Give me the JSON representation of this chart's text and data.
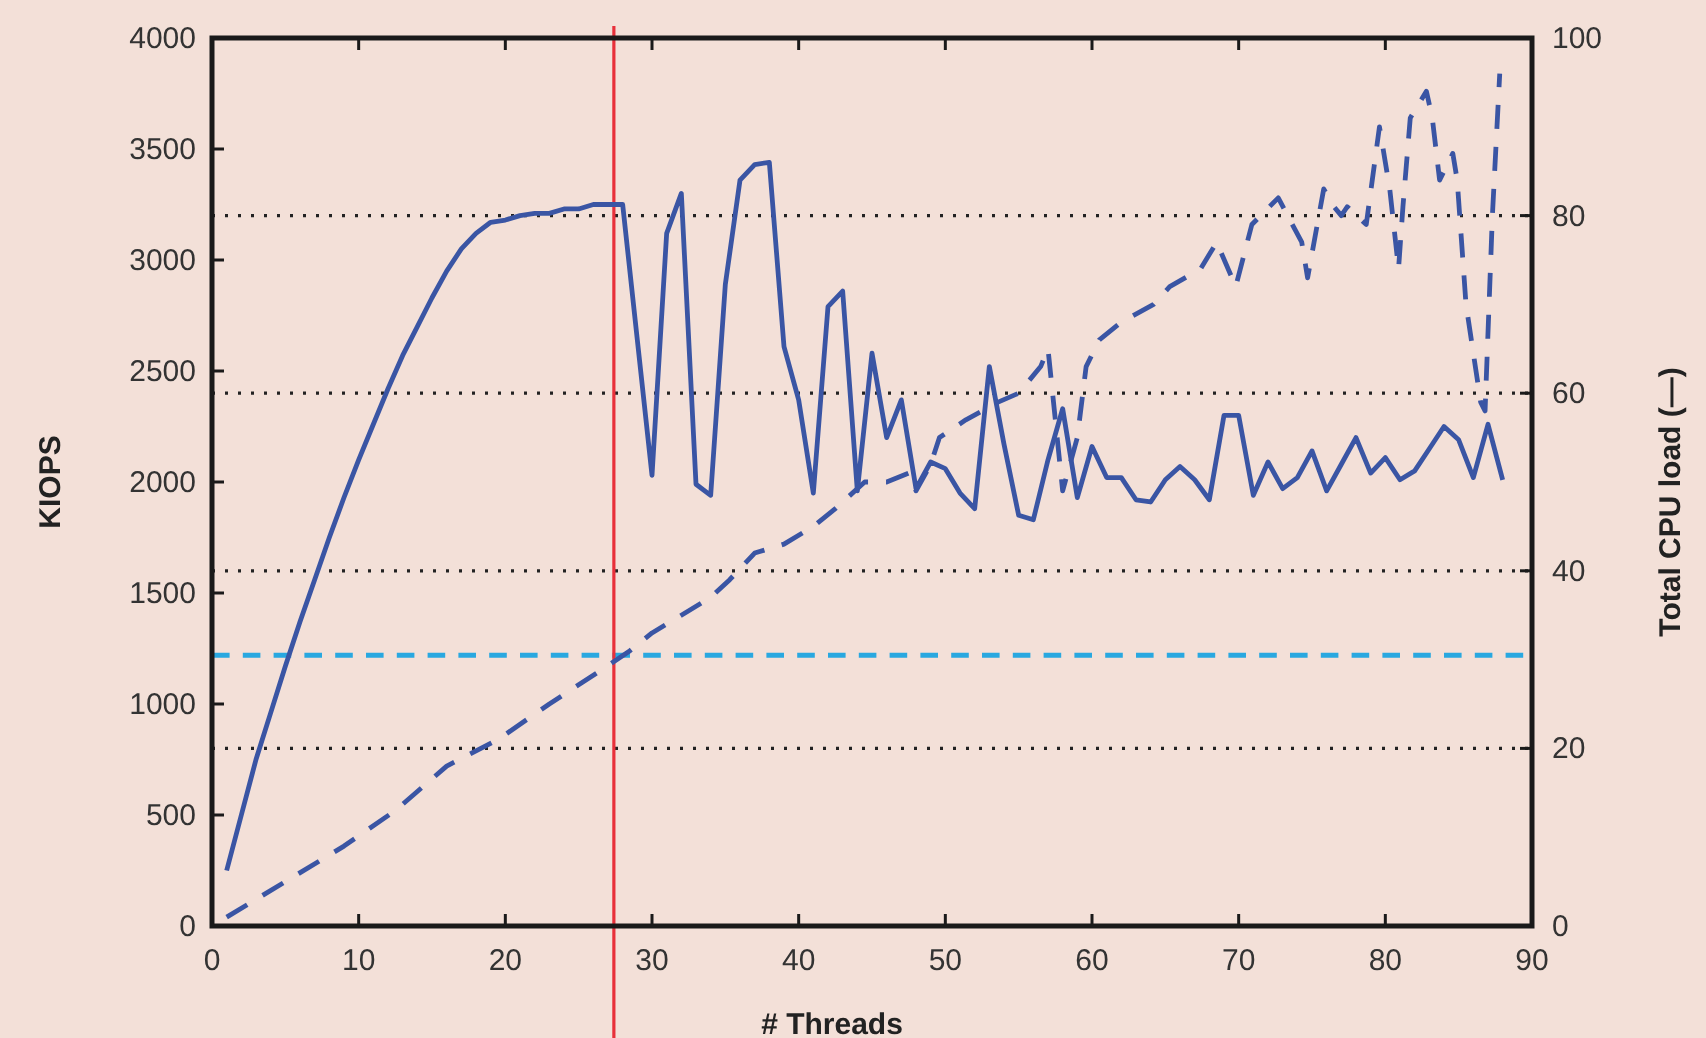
{
  "chart_data": {
    "type": "line",
    "xlabel": "# Threads",
    "ylabel": "KIOPS",
    "y2label": "Total CPU load (—)",
    "x": [
      1,
      2,
      3,
      4,
      5,
      6,
      7,
      8,
      9,
      10,
      11,
      12,
      13,
      14,
      15,
      16,
      17,
      18,
      19,
      20,
      21,
      22,
      23,
      24,
      25,
      26,
      27,
      28,
      29,
      30,
      31,
      32,
      33,
      34,
      35,
      36,
      37,
      38,
      39,
      40,
      41,
      42,
      43,
      44,
      45,
      46,
      47,
      48,
      49,
      50,
      51,
      52,
      53,
      54,
      55,
      56,
      57,
      58,
      59,
      60,
      61,
      62,
      63,
      64,
      65,
      66,
      67,
      68,
      69,
      70,
      71,
      72,
      73,
      74,
      75,
      76,
      77,
      78,
      79,
      80,
      81,
      82,
      83,
      84,
      85,
      86,
      87,
      88
    ],
    "series": [
      {
        "color": "#3a55a4",
        "line_style": "solid",
        "values": [
          250,
          500,
          750,
          960,
          1170,
          1370,
          1560,
          1750,
          1930,
          2100,
          2260,
          2420,
          2570,
          2700,
          2830,
          2950,
          3050,
          3120,
          3170,
          3180,
          3200,
          3210,
          3210,
          3230,
          3230,
          3250,
          3250,
          3250,
          2640,
          2030,
          3120,
          3300,
          1990,
          1940,
          2890,
          3360,
          3430,
          3440,
          2610,
          2370,
          1950,
          2790,
          2860,
          1960,
          2580,
          2200,
          2370,
          1970,
          2090,
          2060,
          1950,
          1880,
          2520,
          2170,
          1850,
          1830,
          2100,
          2330,
          1930,
          2160,
          2020,
          2020,
          1920,
          1910,
          2010,
          2070,
          2010,
          1920,
          2300,
          2300,
          1940,
          2090,
          1970,
          2020,
          2140,
          1960,
          2080,
          2200,
          2040,
          2110,
          2010,
          2050,
          2150,
          2250,
          2190,
          2020,
          2260,
          2010
        ]
      },
      {
        "axis": "y2",
        "color": "#3a55a4",
        "line_style": "dashed",
        "x": [
          1,
          5,
          9,
          12.5,
          16,
          19.5,
          23,
          26.7,
          28.5,
          30,
          32,
          34,
          35.3,
          37,
          39,
          41,
          42.5,
          44.5,
          46,
          47.5,
          48,
          49,
          49.6,
          51.4,
          53.6,
          55,
          56.5,
          57,
          57.5,
          58,
          59,
          59.6,
          60.5,
          62,
          64.2,
          65.3,
          67.4,
          68.5,
          69.8,
          70.9,
          72.7,
          74.3,
          74.7,
          75.8,
          76.5,
          77,
          77.4,
          78.7,
          79.6,
          80,
          80.3,
          80.9,
          81.2,
          81.7,
          82.8,
          83.2,
          83.7,
          84.6,
          84.9,
          85.5,
          86.5,
          86.8,
          87.3,
          87.8
        ],
        "values": [
          1,
          5,
          9,
          13,
          18,
          21,
          25,
          29,
          31,
          33,
          35,
          37,
          39,
          42,
          43,
          45,
          47,
          50,
          50,
          51,
          49,
          52,
          55,
          57,
          59,
          60,
          63,
          65,
          57,
          49,
          55,
          63,
          66,
          68,
          70,
          72,
          74,
          77,
          72,
          79,
          82,
          77,
          73,
          83,
          81,
          80,
          81,
          79,
          90,
          86,
          83,
          74,
          81,
          91,
          94,
          91,
          84,
          87,
          84,
          70,
          59,
          58,
          80,
          96
        ]
      }
    ],
    "xlim": [
      0,
      90
    ],
    "xticks": [
      0,
      10,
      20,
      30,
      40,
      50,
      60,
      70,
      80,
      90
    ],
    "ylim": [
      0,
      4000
    ],
    "yticks": [
      0,
      500,
      1000,
      1500,
      2000,
      2500,
      3000,
      3500,
      4000
    ],
    "y2lim": [
      0,
      100
    ],
    "y2ticks": [
      0,
      20,
      40,
      60,
      80,
      100
    ],
    "ref_lines": [
      {
        "axis": "y2",
        "value": 20,
        "color": "#222222",
        "line_style": "dotted"
      },
      {
        "axis": "y2",
        "value": 40,
        "color": "#222222",
        "line_style": "dotted"
      },
      {
        "axis": "y2",
        "value": 60,
        "color": "#222222",
        "line_style": "dotted"
      },
      {
        "axis": "y2",
        "value": 80,
        "color": "#222222",
        "line_style": "dotted"
      },
      {
        "axis": "y",
        "value": 1220,
        "color": "#29a8e0",
        "line_style": "dashed"
      },
      {
        "axis": "x",
        "value": 27.4,
        "color": "#e8303a",
        "line_style": "solid"
      }
    ]
  }
}
